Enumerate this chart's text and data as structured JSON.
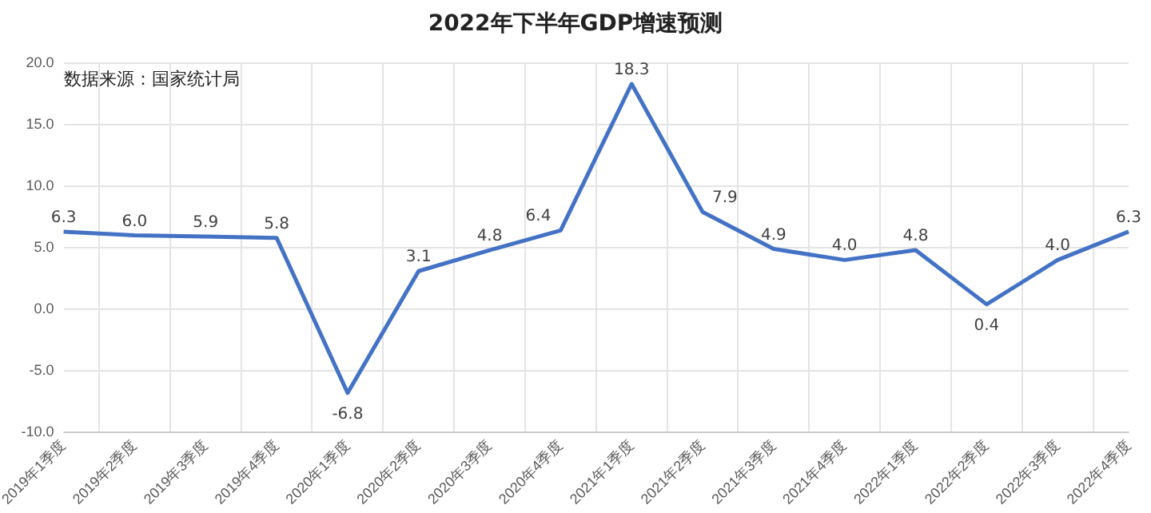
{
  "chart_data": {
    "type": "line",
    "title": "2022年下半年GDP增速预测",
    "categories": [
      "2019年1季度",
      "2019年2季度",
      "2019年3季度",
      "2019年4季度",
      "2020年1季度",
      "2020年2季度",
      "2020年3季度",
      "2020年4季度",
      "2021年1季度",
      "2021年2季度",
      "2021年3季度",
      "2021年4季度",
      "2022年1季度",
      "2022年2季度",
      "2022年3季度",
      "2022年4季度"
    ],
    "series": [
      {
        "color": "#4472c4",
        "values": [
          6.3,
          6.0,
          5.9,
          5.8,
          -6.8,
          3.1,
          4.8,
          6.4,
          18.3,
          7.9,
          4.9,
          4.0,
          4.8,
          0.4,
          4.0,
          6.3
        ],
        "value_labels": [
          "6.3",
          "6.0",
          "5.9",
          "5.8",
          "-6.8",
          "3.1",
          "4.8",
          "6.4",
          "18.3",
          "7.9",
          "4.9",
          "4.0",
          "4.8",
          "0.4",
          "4.0",
          "6.3"
        ]
      }
    ],
    "ylim": [
      -10,
      20
    ],
    "yticks": [
      {
        "value": -10,
        "label": "-10.0"
      },
      {
        "value": -5,
        "label": "-5.0"
      },
      {
        "value": 0,
        "label": "0.0"
      },
      {
        "value": 5,
        "label": "5.0"
      },
      {
        "value": 10,
        "label": "10.0"
      },
      {
        "value": 15,
        "label": "15.0"
      },
      {
        "value": 20,
        "label": "20.0"
      }
    ],
    "annotations": [
      "数据来源：国家统计局"
    ],
    "grid": true,
    "legend": false,
    "marker": "none",
    "line_style": "solid"
  }
}
